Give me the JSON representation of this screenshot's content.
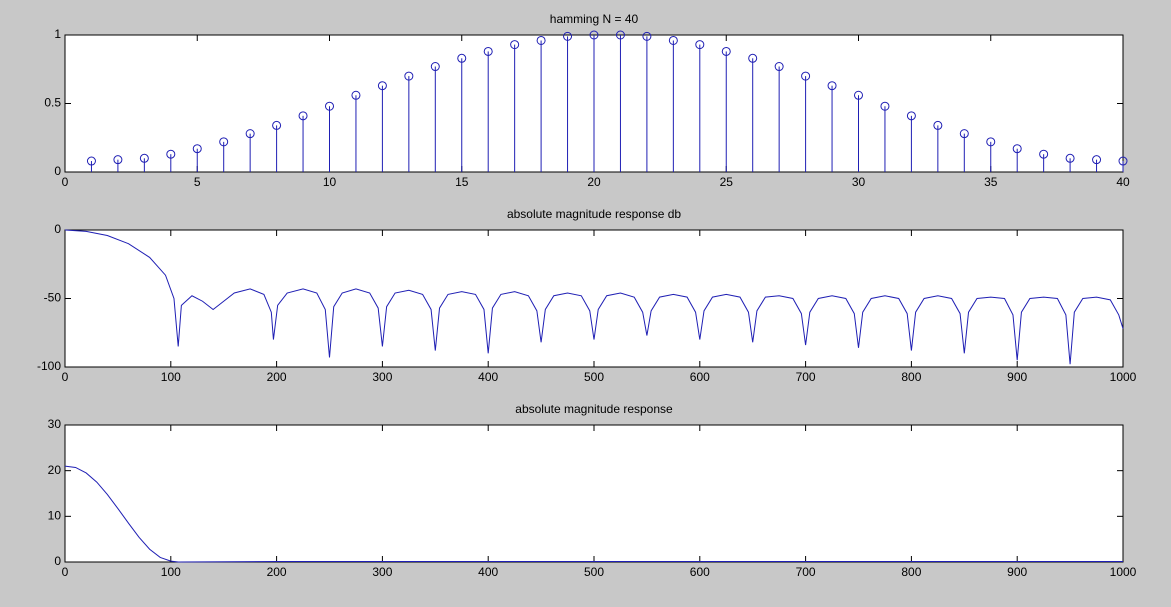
{
  "chart_data": [
    {
      "type": "stem",
      "title": "hamming N = 40",
      "color": "#1f1fb4",
      "x": [
        1,
        2,
        3,
        4,
        5,
        6,
        7,
        8,
        9,
        10,
        11,
        12,
        13,
        14,
        15,
        16,
        17,
        18,
        19,
        20,
        21,
        22,
        23,
        24,
        25,
        26,
        27,
        28,
        29,
        30,
        31,
        32,
        33,
        34,
        35,
        36,
        37,
        38,
        39,
        40
      ],
      "values": [
        0.08,
        0.09,
        0.1,
        0.13,
        0.17,
        0.22,
        0.28,
        0.34,
        0.41,
        0.48,
        0.56,
        0.63,
        0.7,
        0.77,
        0.83,
        0.88,
        0.93,
        0.96,
        0.99,
        1.0,
        1.0,
        0.99,
        0.96,
        0.93,
        0.88,
        0.83,
        0.77,
        0.7,
        0.63,
        0.56,
        0.48,
        0.41,
        0.34,
        0.28,
        0.22,
        0.17,
        0.13,
        0.1,
        0.09,
        0.08
      ],
      "xlim": [
        0,
        40
      ],
      "xticks": [
        0,
        5,
        10,
        15,
        20,
        25,
        30,
        35,
        40
      ],
      "ylim": [
        0,
        1
      ],
      "yticks": [
        0,
        0.5,
        1
      ]
    },
    {
      "type": "line",
      "title": "absolute magnitude response db",
      "color": "#1f1fb4",
      "x": [
        0,
        20,
        40,
        60,
        80,
        95,
        103,
        107,
        110,
        120,
        130,
        140,
        150,
        160,
        175,
        188,
        195,
        197,
        201,
        210,
        225,
        238,
        246,
        250,
        254,
        262,
        275,
        288,
        296,
        300,
        304,
        312,
        325,
        338,
        346,
        350,
        354,
        362,
        375,
        388,
        396,
        400,
        404,
        412,
        425,
        438,
        446,
        450,
        454,
        462,
        475,
        488,
        496,
        500,
        504,
        512,
        525,
        538,
        546,
        550,
        554,
        562,
        575,
        588,
        596,
        600,
        604,
        612,
        625,
        638,
        646,
        650,
        654,
        662,
        675,
        688,
        696,
        700,
        704,
        712,
        725,
        738,
        746,
        750,
        754,
        762,
        775,
        788,
        796,
        800,
        804,
        812,
        825,
        838,
        846,
        850,
        854,
        862,
        875,
        888,
        896,
        900,
        904,
        912,
        925,
        938,
        946,
        950,
        954,
        962,
        975,
        988,
        996,
        1000
      ],
      "values": [
        0,
        -1,
        -4,
        -10,
        -20,
        -33,
        -50,
        -85,
        -55,
        -48,
        -52,
        -58,
        -52,
        -46,
        -43,
        -47,
        -60,
        -80,
        -55,
        -46,
        -43,
        -46,
        -58,
        -93,
        -56,
        -46,
        -43,
        -46,
        -57,
        -85,
        -56,
        -46,
        -44,
        -47,
        -58,
        -88,
        -57,
        -47,
        -45,
        -47,
        -58,
        -90,
        -57,
        -47,
        -45,
        -48,
        -59,
        -82,
        -58,
        -48,
        -46,
        -48,
        -59,
        -80,
        -58,
        -48,
        -46,
        -49,
        -60,
        -77,
        -59,
        -49,
        -47,
        -49,
        -60,
        -80,
        -59,
        -49,
        -47,
        -49,
        -60,
        -82,
        -59,
        -49,
        -48,
        -50,
        -61,
        -84,
        -60,
        -50,
        -48,
        -50,
        -61,
        -86,
        -60,
        -50,
        -48,
        -50,
        -61,
        -88,
        -60,
        -50,
        -48,
        -50,
        -61,
        -90,
        -60,
        -50,
        -49,
        -50,
        -62,
        -95,
        -60,
        -50,
        -49,
        -50,
        -62,
        -98,
        -60,
        -50,
        -49,
        -51,
        -62,
        -72
      ],
      "xlim": [
        0,
        1000
      ],
      "xticks": [
        0,
        100,
        200,
        300,
        400,
        500,
        600,
        700,
        800,
        900,
        1000
      ],
      "ylim": [
        -100,
        0
      ],
      "yticks": [
        -100,
        -50,
        0
      ]
    },
    {
      "type": "line",
      "title": "absolute magnitude response",
      "color": "#1f1fb4",
      "x": [
        0,
        10,
        20,
        30,
        40,
        50,
        60,
        70,
        80,
        90,
        100,
        107,
        200,
        300,
        400,
        500,
        600,
        700,
        800,
        900,
        1000
      ],
      "values": [
        21,
        20.7,
        19.5,
        17.5,
        14.8,
        11.7,
        8.5,
        5.4,
        2.8,
        1,
        0.2,
        0,
        0.1,
        0.1,
        0.1,
        0.1,
        0.1,
        0.1,
        0.1,
        0.1,
        0.1
      ],
      "xlim": [
        0,
        1000
      ],
      "xticks": [
        0,
        100,
        200,
        300,
        400,
        500,
        600,
        700,
        800,
        900,
        1000
      ],
      "ylim": [
        0,
        30
      ],
      "yticks": [
        0,
        10,
        20,
        30
      ]
    }
  ]
}
